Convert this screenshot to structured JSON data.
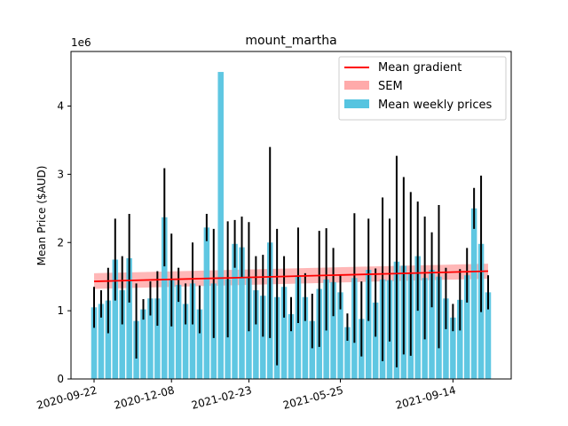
{
  "chart_data": {
    "type": "bar",
    "title": "mount_martha",
    "ylabel": "Mean Price ($AUD)",
    "xlabel": "",
    "y_offset_label": "1e6",
    "ylim": [
      0,
      4.8
    ],
    "y_ticks": [
      0,
      1,
      2,
      3,
      4
    ],
    "x_ticks": [
      {
        "label": "2020-09-22",
        "index": 0
      },
      {
        "label": "2020-12-08",
        "index": 11
      },
      {
        "label": "2021-02-23",
        "index": 22
      },
      {
        "label": "2021-05-25",
        "index": 35
      },
      {
        "label": "2021-09-14",
        "index": 51
      }
    ],
    "bars": {
      "name": "Mean weekly prices",
      "color": "#56c4e0",
      "values": [
        1.05,
        1.1,
        1.15,
        1.75,
        1.3,
        1.77,
        0.85,
        1.02,
        1.18,
        1.18,
        2.37,
        1.45,
        1.38,
        1.1,
        1.4,
        1.02,
        2.22,
        1.4,
        4.5,
        1.46,
        1.98,
        1.93,
        1.5,
        1.3,
        1.22,
        2.0,
        1.2,
        1.35,
        0.95,
        1.52,
        1.2,
        0.85,
        1.32,
        1.46,
        1.42,
        1.27,
        0.76,
        1.48,
        0.88,
        1.6,
        1.12,
        1.46,
        1.45,
        1.72,
        1.66,
        1.54,
        1.8,
        1.48,
        1.6,
        1.5,
        1.18,
        0.9,
        1.16,
        1.52,
        2.5,
        1.98,
        1.27
      ],
      "errors": [
        0.3,
        0.2,
        0.48,
        0.6,
        0.5,
        0.65,
        0.55,
        0.15,
        0.25,
        0.4,
        0.72,
        0.68,
        0.25,
        0.3,
        0.6,
        0.35,
        0.2,
        0.8,
        0.0,
        0.85,
        0.35,
        0.45,
        0.8,
        0.5,
        0.6,
        1.4,
        1.0,
        0.45,
        0.25,
        0.7,
        0.35,
        0.4,
        0.85,
        0.75,
        0.5,
        0.25,
        0.2,
        0.95,
        0.55,
        0.75,
        0.5,
        1.2,
        0.9,
        1.55,
        1.3,
        1.2,
        0.8,
        0.9,
        0.55,
        1.05,
        0.45,
        0.2,
        0.45,
        0.4,
        0.3,
        1.0,
        0.25
      ]
    },
    "trend_line": {
      "name": "Mean gradient",
      "color": "#ff0000",
      "start": 1.43,
      "end": 1.58
    },
    "sem_band": {
      "name": "SEM",
      "color": "#ffaaaa",
      "start_lower": 1.32,
      "start_upper": 1.55,
      "end_lower": 1.47,
      "end_upper": 1.69
    },
    "legend_position": "top-right",
    "grid": false
  }
}
